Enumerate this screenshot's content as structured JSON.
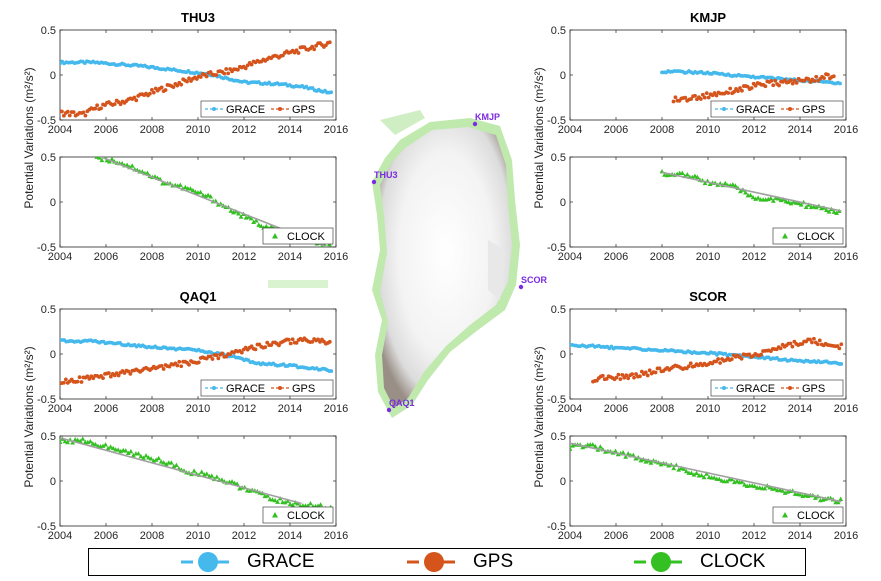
{
  "colors": {
    "grace": "#45b8ec",
    "gps": "#d4541c",
    "clock": "#34c023",
    "trend": "#a0a0a0",
    "station": "#7b2be0"
  },
  "ylabel": "Potential Variations (m²/s²)",
  "map": {
    "stations": [
      {
        "name": "KMJP"
      },
      {
        "name": "THU3"
      },
      {
        "name": "SCOR"
      },
      {
        "name": "QAQ1"
      }
    ]
  },
  "legend": {
    "items": [
      {
        "label": "GRACE",
        "icon": "circle-marker-dash-line",
        "color": "#45b8ec"
      },
      {
        "label": "GPS",
        "icon": "circle-marker-dash-line",
        "color": "#d4541c"
      },
      {
        "label": "CLOCK",
        "icon": "circle-marker-dash-line",
        "color": "#34c023"
      }
    ]
  },
  "chart_data": [
    {
      "id": "thu3-top",
      "type": "scatter",
      "title": "THU3",
      "xlim": [
        2004,
        2016
      ],
      "ylim": [
        -0.5,
        0.5
      ],
      "xticks": [
        "2004",
        "2006",
        "2008",
        "2010",
        "2012",
        "2014",
        "2016"
      ],
      "yticks": [
        "-0.5",
        "0",
        "0.5"
      ],
      "legend": [
        "GRACE",
        "GPS"
      ],
      "legend_position": "bottom-right",
      "series": [
        {
          "name": "GRACE",
          "x": [
            2004.0,
            2005.5,
            2007.5,
            2010.5,
            2012.0,
            2013.5,
            2014.5,
            2015.8
          ],
          "y": [
            0.14,
            0.14,
            0.1,
            0.01,
            -0.08,
            -0.1,
            -0.13,
            -0.2
          ]
        },
        {
          "name": "GPS",
          "x": [
            2004.0,
            2005.0,
            2005.7,
            2007.0,
            2008.5,
            2010.0,
            2011.5,
            2013.0,
            2014.5,
            2015.8
          ],
          "y": [
            -0.42,
            -0.44,
            -0.35,
            -0.28,
            -0.15,
            -0.02,
            0.05,
            0.18,
            0.28,
            0.36
          ]
        }
      ]
    },
    {
      "id": "thu3-bottom",
      "type": "scatter",
      "xlim": [
        2004,
        2016
      ],
      "ylim": [
        -0.5,
        0.5
      ],
      "xticks": [
        "2004",
        "2006",
        "2008",
        "2010",
        "2012",
        "2014",
        "2016"
      ],
      "yticks": [
        "-0.5",
        "0",
        "0.5"
      ],
      "legend": [
        "CLOCK"
      ],
      "legend_position": "bottom-right",
      "series": [
        {
          "name": "CLOCK",
          "x": [
            2005.6,
            2006.5,
            2007.5,
            2008.5,
            2009.5,
            2010.5,
            2011.5,
            2012.3,
            2013.0,
            2014.0,
            2015.0,
            2015.8
          ],
          "y": [
            0.5,
            0.45,
            0.35,
            0.22,
            0.15,
            0.05,
            -0.1,
            -0.2,
            -0.28,
            -0.35,
            -0.45,
            -0.5
          ]
        },
        {
          "name": "trend",
          "x": [
            2005.6,
            2015.8
          ],
          "y": [
            0.52,
            -0.52
          ]
        }
      ]
    },
    {
      "id": "kmjp-top",
      "type": "scatter",
      "title": "KMJP",
      "xlim": [
        2004,
        2016
      ],
      "ylim": [
        -0.5,
        0.5
      ],
      "xticks": [
        "2004",
        "2006",
        "2008",
        "2010",
        "2012",
        "2014",
        "2016"
      ],
      "yticks": [
        "-0.5",
        "0",
        "0.5"
      ],
      "legend": [
        "GRACE",
        "GPS"
      ],
      "legend_position": "bottom-right",
      "series": [
        {
          "name": "GRACE",
          "x": [
            2008.0,
            2009.5,
            2011.0,
            2012.5,
            2014.0,
            2015.8
          ],
          "y": [
            0.04,
            0.03,
            0.0,
            -0.03,
            -0.06,
            -0.09
          ]
        },
        {
          "name": "GPS",
          "x": [
            2008.5,
            2009.5,
            2010.5,
            2011.5,
            2012.5,
            2013.5,
            2014.5,
            2015.5
          ],
          "y": [
            -0.28,
            -0.25,
            -0.2,
            -0.15,
            -0.1,
            -0.08,
            -0.05,
            0.0
          ]
        }
      ]
    },
    {
      "id": "kmjp-bottom",
      "type": "scatter",
      "xlim": [
        2004,
        2016
      ],
      "ylim": [
        -0.5,
        0.5
      ],
      "xticks": [
        "2004",
        "2006",
        "2008",
        "2010",
        "2012",
        "2014",
        "2016"
      ],
      "yticks": [
        "-0.5",
        "0",
        "0.5"
      ],
      "legend": [
        "CLOCK"
      ],
      "legend_position": "bottom-right",
      "series": [
        {
          "name": "CLOCK",
          "x": [
            2008.0,
            2009.0,
            2010.0,
            2011.0,
            2012.0,
            2013.0,
            2014.0,
            2015.0,
            2015.8
          ],
          "y": [
            0.32,
            0.3,
            0.22,
            0.18,
            0.05,
            0.02,
            -0.02,
            -0.08,
            -0.12
          ]
        },
        {
          "name": "trend",
          "x": [
            2008.0,
            2015.8
          ],
          "y": [
            0.33,
            -0.1
          ]
        }
      ]
    },
    {
      "id": "qaq1-top",
      "type": "scatter",
      "title": "QAQ1",
      "xlim": [
        2004,
        2016
      ],
      "ylim": [
        -0.5,
        0.5
      ],
      "xticks": [
        "2004",
        "2006",
        "2008",
        "2010",
        "2012",
        "2014",
        "2016"
      ],
      "yticks": [
        "-0.5",
        "0",
        "0.5"
      ],
      "legend": [
        "GRACE",
        "GPS"
      ],
      "legend_position": "bottom-right",
      "series": [
        {
          "name": "GRACE",
          "x": [
            2004.0,
            2005.5,
            2007.5,
            2010.0,
            2011.5,
            2012.5,
            2014.0,
            2015.8
          ],
          "y": [
            0.15,
            0.14,
            0.09,
            0.04,
            -0.03,
            -0.1,
            -0.13,
            -0.18
          ]
        },
        {
          "name": "GPS",
          "x": [
            2004.0,
            2005.5,
            2007.0,
            2008.5,
            2010.5,
            2011.5,
            2012.5,
            2013.5,
            2014.5,
            2015.8
          ],
          "y": [
            -0.3,
            -0.27,
            -0.2,
            -0.15,
            -0.05,
            0.02,
            0.08,
            0.12,
            0.16,
            0.12
          ]
        }
      ]
    },
    {
      "id": "qaq1-bottom",
      "type": "scatter",
      "xlim": [
        2004,
        2016
      ],
      "ylim": [
        -0.5,
        0.5
      ],
      "xticks": [
        "2004",
        "2006",
        "2008",
        "2010",
        "2012",
        "2014",
        "2016"
      ],
      "yticks": [
        "-0.5",
        "0",
        "0.5"
      ],
      "legend": [
        "CLOCK"
      ],
      "legend_position": "bottom-right",
      "series": [
        {
          "name": "CLOCK",
          "x": [
            2004.0,
            2005.0,
            2006.0,
            2007.5,
            2008.5,
            2009.5,
            2010.3,
            2011.2,
            2012.0,
            2013.0,
            2014.0,
            2015.8
          ],
          "y": [
            0.45,
            0.45,
            0.38,
            0.28,
            0.22,
            0.1,
            0.08,
            0.0,
            -0.08,
            -0.18,
            -0.25,
            -0.3
          ]
        },
        {
          "name": "trend",
          "x": [
            2004.0,
            2014.5
          ],
          "y": [
            0.48,
            -0.25
          ]
        }
      ]
    },
    {
      "id": "scor-top",
      "type": "scatter",
      "title": "SCOR",
      "xlim": [
        2004,
        2016
      ],
      "ylim": [
        -0.5,
        0.5
      ],
      "xticks": [
        "2004",
        "2006",
        "2008",
        "2010",
        "2012",
        "2014",
        "2016"
      ],
      "yticks": [
        "-0.5",
        "0",
        "0.5"
      ],
      "legend": [
        "GRACE",
        "GPS"
      ],
      "legend_position": "bottom-right",
      "series": [
        {
          "name": "GRACE",
          "x": [
            2004.0,
            2006.0,
            2008.0,
            2010.0,
            2012.0,
            2014.0,
            2015.8
          ],
          "y": [
            0.1,
            0.07,
            0.04,
            0.01,
            -0.03,
            -0.08,
            -0.1
          ]
        },
        {
          "name": "GPS",
          "x": [
            2005.0,
            2006.5,
            2008.0,
            2009.5,
            2011.0,
            2012.5,
            2013.5,
            2014.5,
            2015.8
          ],
          "y": [
            -0.28,
            -0.25,
            -0.18,
            -0.12,
            -0.05,
            0.02,
            0.1,
            0.15,
            0.08
          ]
        }
      ]
    },
    {
      "id": "scor-bottom",
      "type": "scatter",
      "xlim": [
        2004,
        2016
      ],
      "ylim": [
        -0.5,
        0.5
      ],
      "xticks": [
        "2004",
        "2006",
        "2008",
        "2010",
        "2012",
        "2014",
        "2016"
      ],
      "yticks": [
        "-0.5",
        "0",
        "0.5"
      ],
      "legend": [
        "CLOCK"
      ],
      "legend_position": "bottom-right",
      "series": [
        {
          "name": "CLOCK",
          "x": [
            2004.0,
            2005.0,
            2006.0,
            2007.0,
            2008.0,
            2009.0,
            2010.0,
            2011.0,
            2012.0,
            2013.0,
            2014.0,
            2015.0,
            2015.8
          ],
          "y": [
            0.38,
            0.38,
            0.32,
            0.25,
            0.2,
            0.12,
            0.05,
            0.0,
            -0.05,
            -0.1,
            -0.15,
            -0.2,
            -0.22
          ]
        },
        {
          "name": "trend",
          "x": [
            2004.0,
            2015.8
          ],
          "y": [
            0.42,
            -0.23
          ]
        }
      ]
    }
  ]
}
